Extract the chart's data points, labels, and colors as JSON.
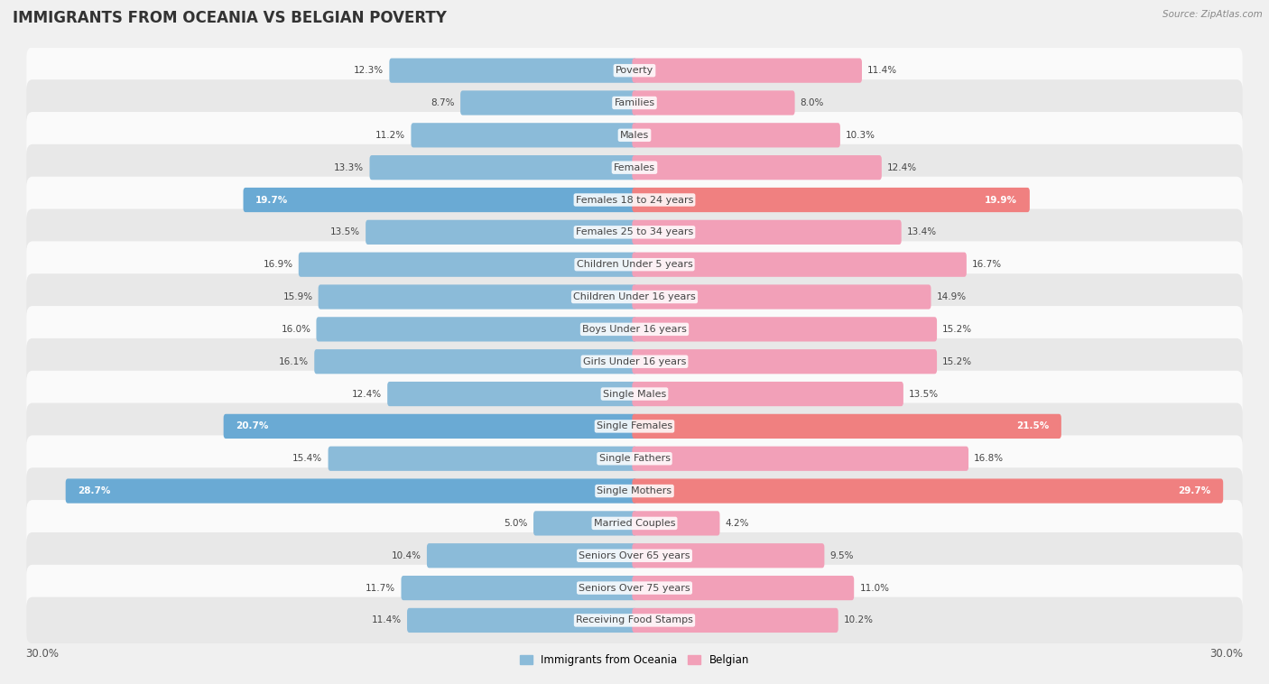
{
  "title": "IMMIGRANTS FROM OCEANIA VS BELGIAN POVERTY",
  "source": "Source: ZipAtlas.com",
  "categories": [
    "Poverty",
    "Families",
    "Males",
    "Females",
    "Females 18 to 24 years",
    "Females 25 to 34 years",
    "Children Under 5 years",
    "Children Under 16 years",
    "Boys Under 16 years",
    "Girls Under 16 years",
    "Single Males",
    "Single Females",
    "Single Fathers",
    "Single Mothers",
    "Married Couples",
    "Seniors Over 65 years",
    "Seniors Over 75 years",
    "Receiving Food Stamps"
  ],
  "left_values": [
    12.3,
    8.7,
    11.2,
    13.3,
    19.7,
    13.5,
    16.9,
    15.9,
    16.0,
    16.1,
    12.4,
    20.7,
    15.4,
    28.7,
    5.0,
    10.4,
    11.7,
    11.4
  ],
  "right_values": [
    11.4,
    8.0,
    10.3,
    12.4,
    19.9,
    13.4,
    16.7,
    14.9,
    15.2,
    15.2,
    13.5,
    21.5,
    16.8,
    29.7,
    4.2,
    9.5,
    11.0,
    10.2
  ],
  "left_color": "#8bbbd9",
  "right_color": "#f2a0b8",
  "highlight_left_color": "#6aaad4",
  "highlight_right_color": "#f08080",
  "highlight_rows": [
    4,
    11,
    13
  ],
  "bg_color": "#f0f0f0",
  "row_color_light": "#fafafa",
  "row_color_dark": "#e8e8e8",
  "max_value": 30.0,
  "title_fontsize": 12,
  "label_fontsize": 8,
  "value_fontsize": 7.5,
  "legend_label_left": "Immigrants from Oceania",
  "legend_label_right": "Belgian"
}
